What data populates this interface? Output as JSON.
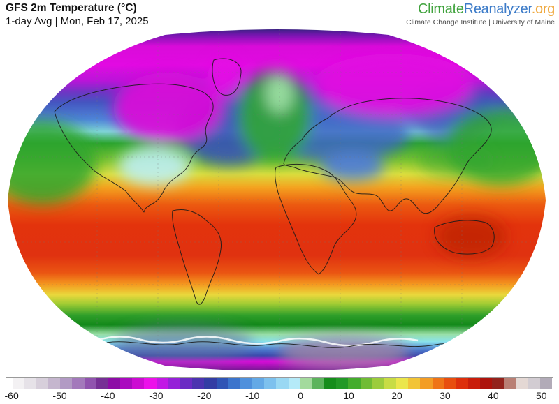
{
  "header": {
    "title": "GFS 2m Temperature (°C)",
    "subtitle": "1-day Avg | Mon, Feb 17, 2025"
  },
  "logo": {
    "climate": "Climate",
    "reanalyzer": "Reanalyzer",
    "org": ".org",
    "tagline": "Climate Change Institute | University of Maine",
    "colors": {
      "climate": "#3fa23c",
      "reanalyzer": "#3d7cc9",
      "org": "#efa83d"
    }
  },
  "chart_data": {
    "type": "heatmap",
    "title": "GFS 2m Temperature (°C)",
    "variable": "2m Temperature",
    "units": "°C",
    "aggregation": "1-day Avg",
    "date": "Mon, Feb 17, 2025",
    "layout": "global world map, Winkel-Tripel-style oval outline with graticule and coastlines, horizontal colorbar legend below",
    "colorbar": {
      "min": -61.25,
      "max": 52.5,
      "tick_values": [
        -60,
        -50,
        -40,
        -30,
        -20,
        -10,
        0,
        10,
        20,
        30,
        40,
        50
      ],
      "segments": [
        {
          "from": -62.5,
          "to": -60,
          "color": "#ffffff"
        },
        {
          "from": -60,
          "to": -57.5,
          "color": "#f3f1f3"
        },
        {
          "from": -57.5,
          "to": -55,
          "color": "#e6e2e8"
        },
        {
          "from": -55,
          "to": -52.5,
          "color": "#d7cfdb"
        },
        {
          "from": -52.5,
          "to": -50,
          "color": "#c5b6ce"
        },
        {
          "from": -50,
          "to": -47.5,
          "color": "#b29ac4"
        },
        {
          "from": -47.5,
          "to": -45,
          "color": "#a379bb"
        },
        {
          "from": -45,
          "to": -42.5,
          "color": "#9053ae"
        },
        {
          "from": -42.5,
          "to": -40,
          "color": "#762f95"
        },
        {
          "from": -40,
          "to": -37.5,
          "color": "#8d0ca6"
        },
        {
          "from": -37.5,
          "to": -35,
          "color": "#aa0abf"
        },
        {
          "from": -35,
          "to": -32.5,
          "color": "#cc0bd2"
        },
        {
          "from": -32.5,
          "to": -30,
          "color": "#ec10ea"
        },
        {
          "from": -30,
          "to": -27.5,
          "color": "#c217e5"
        },
        {
          "from": -27.5,
          "to": -25,
          "color": "#9621d8"
        },
        {
          "from": -25,
          "to": -22.5,
          "color": "#6b2bc4"
        },
        {
          "from": -22.5,
          "to": -20,
          "color": "#4c33b0"
        },
        {
          "from": -20,
          "to": -17.5,
          "color": "#333ca4"
        },
        {
          "from": -17.5,
          "to": -15,
          "color": "#2f54b5"
        },
        {
          "from": -15,
          "to": -12.5,
          "color": "#3b74cc"
        },
        {
          "from": -12.5,
          "to": -10,
          "color": "#4e90dc"
        },
        {
          "from": -10,
          "to": -7.5,
          "color": "#63a9e6"
        },
        {
          "from": -7.5,
          "to": -5,
          "color": "#7dc1ee"
        },
        {
          "from": -5,
          "to": -2.5,
          "color": "#99d8f3"
        },
        {
          "from": -2.5,
          "to": 0,
          "color": "#b5eaf8"
        },
        {
          "from": 0,
          "to": 2.5,
          "color": "#a3da9d"
        },
        {
          "from": 2.5,
          "to": 5,
          "color": "#5cb45c"
        },
        {
          "from": 5,
          "to": 7.5,
          "color": "#158d1b"
        },
        {
          "from": 7.5,
          "to": 10,
          "color": "#229926"
        },
        {
          "from": 10,
          "to": 12.5,
          "color": "#44ac2c"
        },
        {
          "from": 12.5,
          "to": 15,
          "color": "#70bc34"
        },
        {
          "from": 15,
          "to": 17.5,
          "color": "#9ccc3c"
        },
        {
          "from": 17.5,
          "to": 20,
          "color": "#c8dc44"
        },
        {
          "from": 20,
          "to": 22.5,
          "color": "#ebe64b"
        },
        {
          "from": 22.5,
          "to": 25,
          "color": "#f2c436"
        },
        {
          "from": 25,
          "to": 27.5,
          "color": "#f39d24"
        },
        {
          "from": 27.5,
          "to": 30,
          "color": "#ef7416"
        },
        {
          "from": 30,
          "to": 32.5,
          "color": "#e84e0e"
        },
        {
          "from": 32.5,
          "to": 35,
          "color": "#dd2f0b"
        },
        {
          "from": 35,
          "to": 37.5,
          "color": "#c91d0a"
        },
        {
          "from": 37.5,
          "to": 40,
          "color": "#ad130c"
        },
        {
          "from": 40,
          "to": 42.5,
          "color": "#93231c"
        },
        {
          "from": 42.5,
          "to": 45,
          "color": "#b97f74"
        },
        {
          "from": 45,
          "to": 47.5,
          "color": "#e4d8d4"
        },
        {
          "from": 47.5,
          "to": 50,
          "color": "#d2ccd2"
        },
        {
          "from": 50,
          "to": 52.5,
          "color": "#b2abb8"
        }
      ]
    },
    "features": [
      "Magenta/purple cold pool (about -30 to -45 °C) over the Arctic, central Canada, Greenland interior and Siberia",
      "Dark indigo band along the top (north pole) edge of the projection",
      "Dark blue (-15 to -25 °C) across eastern Canada, Russia and the Tibetan Plateau",
      "Pale cyan near-0 °C tongue over the central/eastern United States",
      "Green 0-10 °C over the NE Pacific/Alaska, North Atlantic near Iceland/Norway, Europe and east Asia/NW Pacific",
      "Yellow 15-20 °C subtropical band across Mexico, Mediterranean/north Sahara fringe and 35-45°S oceans",
      "Red 25-35 °C across the tropics: South America, Africa, India, Southeast Asia, north Australia and tropical oceans",
      "Dark red about 35-40 °C over interior Australia",
      "Green-to-pale-green then cyan 0-10 °C belt over the Southern Ocean with a white 0 °C contour near Antarctica",
      "Blue -10 to -25 °C Antarctic coast, magenta -30 to -40 °C ring and gray-purple (about -45 to -50 °C) core over East Antarctica"
    ]
  }
}
